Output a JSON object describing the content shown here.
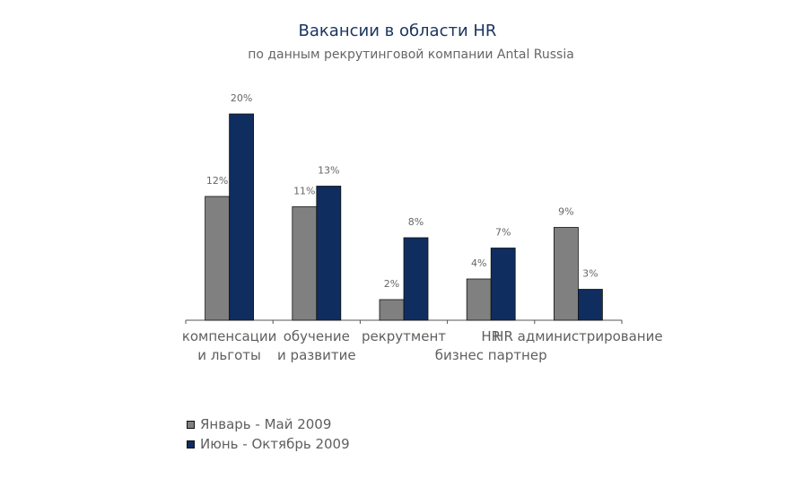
{
  "chart_data": {
    "type": "bar",
    "title": "Вакансии в области HR",
    "subtitle": "по данным рекрутинговой компании Antal Russia",
    "categories": [
      [
        "компенсации",
        "и льготы"
      ],
      [
        "обучение",
        "и развитие"
      ],
      [
        "рекрутмент"
      ],
      [
        "HR",
        "бизнес партнер"
      ],
      [
        "HR администрирование"
      ]
    ],
    "series": [
      {
        "name": "Январь - Май 2009",
        "values": [
          12,
          11,
          2,
          4,
          9
        ],
        "labels": [
          "12%",
          "11%",
          "2%",
          "4%",
          "9%"
        ],
        "color": "#808080"
      },
      {
        "name": "Июнь - Октябрь 2009",
        "values": [
          20,
          13,
          8,
          7,
          3
        ],
        "labels": [
          "20%",
          "13%",
          "8%",
          "7%",
          "3%"
        ],
        "color": "#0f2d5f"
      }
    ],
    "ylim": [
      0,
      20
    ],
    "grid": false,
    "legend_position": "bottom-left"
  }
}
